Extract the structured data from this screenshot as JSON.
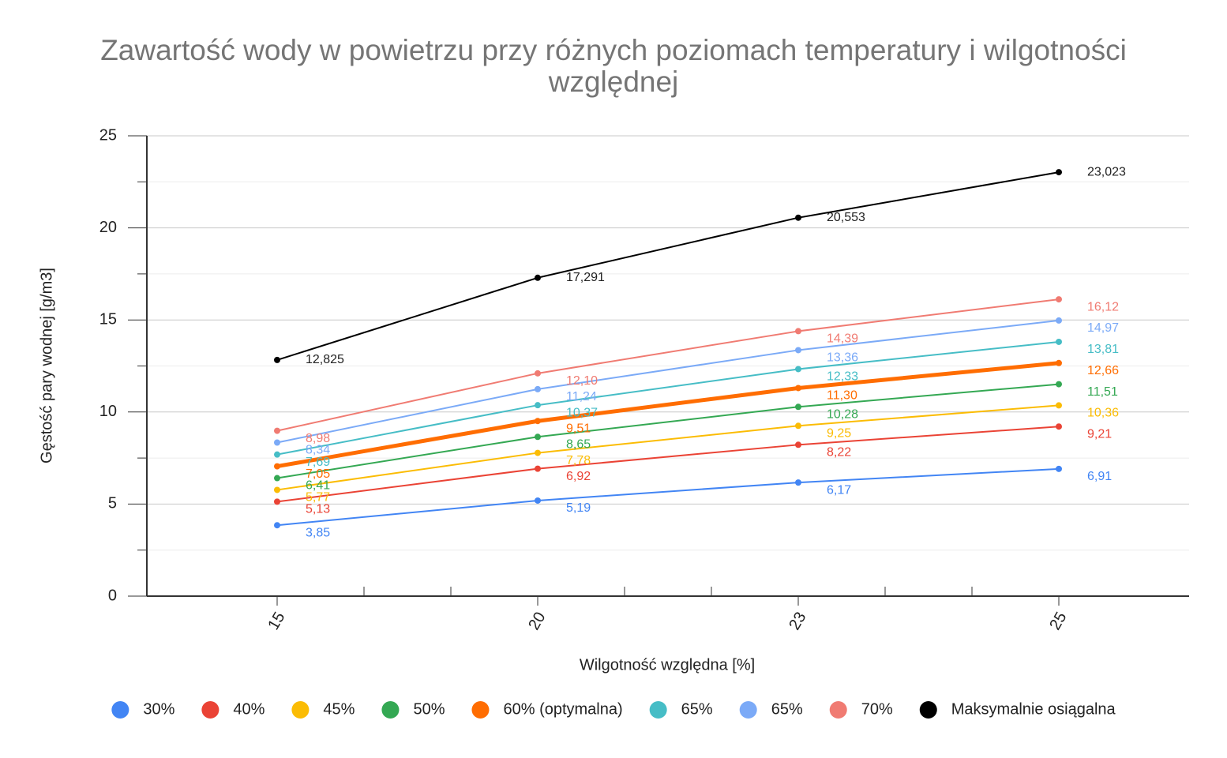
{
  "chart_data": {
    "type": "line",
    "title": "Zawartość wody w powietrzu przy różnych poziomach temperatury i wilgotności względnej",
    "x_label": "Wilgotność względna [%]",
    "y_label": "Gęstość pary wodnej [g/m3]",
    "categories": [
      "15",
      "20",
      "23",
      "25"
    ],
    "ylim": [
      0,
      25
    ],
    "yticks": [
      0,
      5,
      10,
      15,
      20,
      25
    ],
    "yminorticks": [
      2.5,
      7.5,
      12.5,
      17.5,
      22.5
    ],
    "grid": true,
    "legend": "bottom",
    "series": [
      {
        "name": "30%",
        "color": "#4285f4",
        "values": [
          3.85,
          5.19,
          6.17,
          6.91
        ],
        "value_labels": [
          "3,85",
          "5,19",
          "6,17",
          "6,91"
        ]
      },
      {
        "name": "40%",
        "color": "#ea4335",
        "values": [
          5.13,
          6.92,
          8.22,
          9.21
        ],
        "value_labels": [
          "5,13",
          "6,92",
          "8,22",
          "9,21"
        ]
      },
      {
        "name": "45%",
        "color": "#fbbc04",
        "values": [
          5.77,
          7.78,
          9.25,
          10.36
        ],
        "value_labels": [
          "5,77",
          "7,78",
          "9,25",
          "10,36"
        ]
      },
      {
        "name": "50%",
        "color": "#34a853",
        "values": [
          6.41,
          8.65,
          10.28,
          11.51
        ],
        "value_labels": [
          "6,41",
          "8,65",
          "10,28",
          "11,51"
        ]
      },
      {
        "name": "60% (optymalna)",
        "color": "#ff6d01",
        "width": 5,
        "values": [
          7.05,
          9.51,
          11.3,
          12.66
        ],
        "value_labels": [
          "7,05",
          "9,51",
          "11,30",
          "12,66"
        ]
      },
      {
        "name": "65%",
        "color": "#46bdc6",
        "values": [
          7.69,
          10.37,
          12.33,
          13.81
        ],
        "value_labels": [
          "7,69",
          "10,37",
          "12,33",
          "13,81"
        ]
      },
      {
        "name": "65%",
        "color": "#7baaf7",
        "values": [
          8.34,
          11.24,
          13.36,
          14.97
        ],
        "value_labels": [
          "8,34",
          "11,24",
          "13,36",
          "14,97"
        ]
      },
      {
        "name": "70%",
        "color": "#f07b72",
        "values": [
          8.98,
          12.1,
          14.39,
          16.12
        ],
        "value_labels": [
          "8,98",
          "12,10",
          "14,39",
          "16,12"
        ]
      },
      {
        "name": "Maksymalnie osiągalna",
        "color": "#000000",
        "values": [
          12.825,
          17.291,
          20.553,
          23.023
        ],
        "value_labels": [
          "12,825",
          "17,291",
          "20,553",
          "23,023"
        ]
      }
    ]
  }
}
